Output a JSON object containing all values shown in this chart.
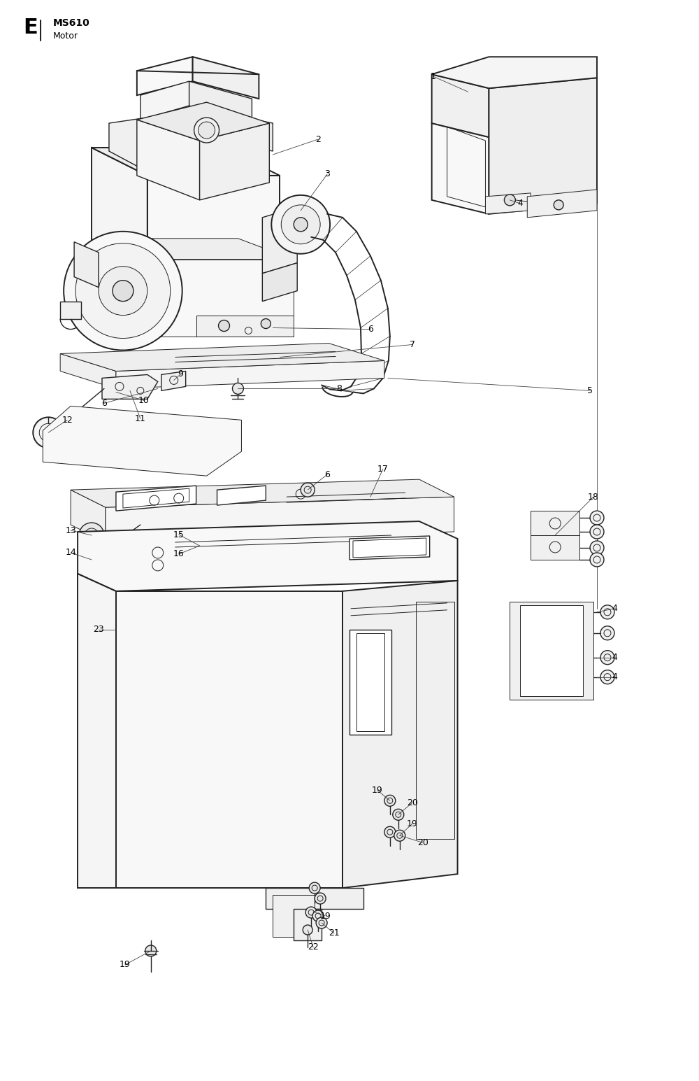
{
  "title_letter": "E",
  "title_model": "MS610",
  "title_subtitle": "Motor",
  "bg_color": "#ffffff",
  "line_color": "#222222",
  "fig_width": 10.0,
  "fig_height": 15.45,
  "dpi": 100
}
